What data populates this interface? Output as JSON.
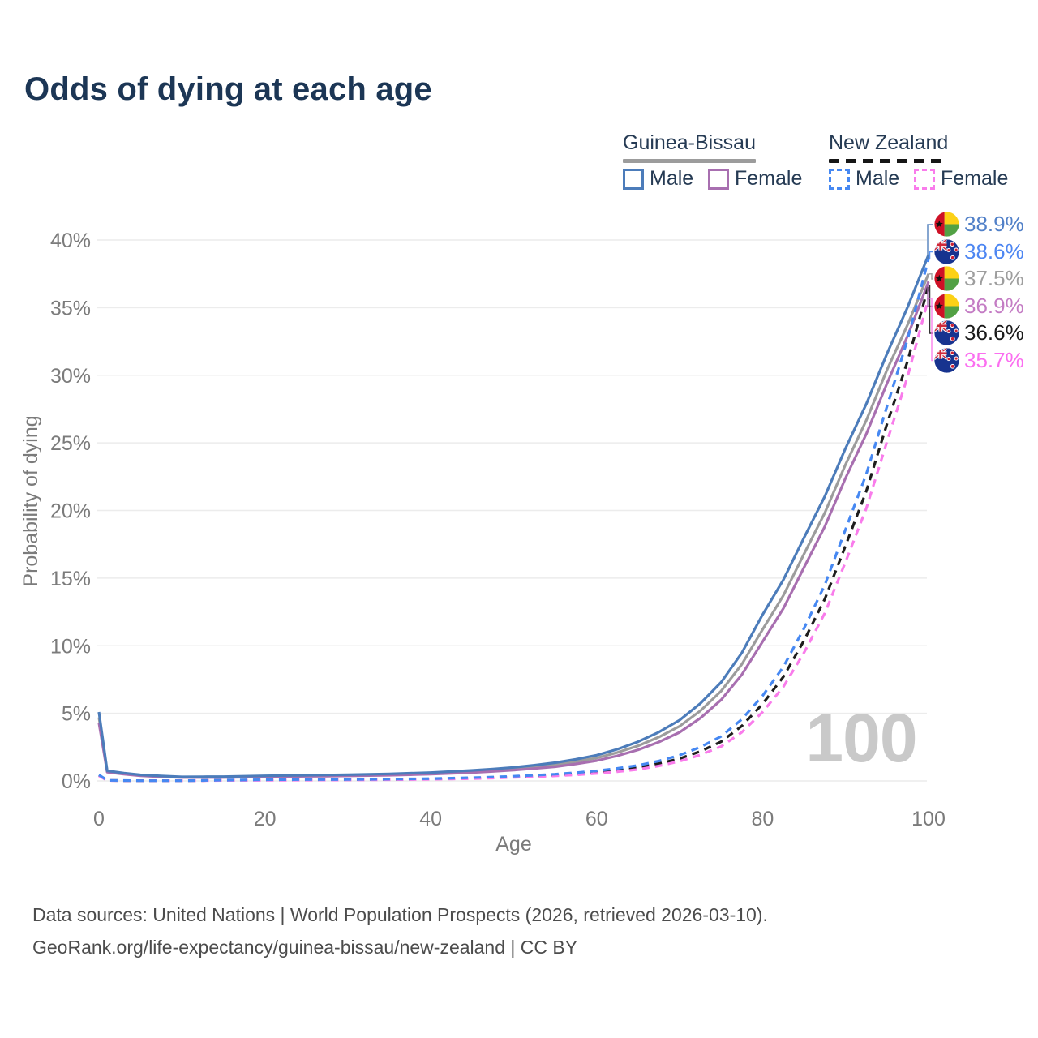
{
  "title": "Odds of dying at each age",
  "watermark": "100",
  "legend": {
    "groups": [
      {
        "label": "Guinea-Bissau",
        "line_style": "solid",
        "underline_color": "#9c9c9c",
        "items": [
          {
            "label": "Male",
            "color": "#4c7cba",
            "dashed": false
          },
          {
            "label": "Female",
            "color": "#a86fb0",
            "dashed": false
          }
        ]
      },
      {
        "label": "New Zealand",
        "line_style": "dashed",
        "underline_color": "#161616",
        "items": [
          {
            "label": "Male",
            "color": "#4688f2",
            "dashed": true
          },
          {
            "label": "Female",
            "color": "#f97ceb",
            "dashed": true
          }
        ]
      }
    ]
  },
  "footer": {
    "line1": "Data sources: United Nations | World Population Prospects (2026, retrieved 2026-03-10).",
    "line2": "GeoRank.org/life-expectancy/guinea-bissau/new-zealand | CC BY"
  },
  "chart_data": {
    "type": "line",
    "title": "Odds of dying at each age",
    "xlabel": "Age",
    "ylabel": "Probability of dying",
    "xlim": [
      0,
      100
    ],
    "ylim": [
      0,
      40
    ],
    "grid": "horizontal",
    "legend_position": "top-right",
    "xticks": [
      0,
      20,
      40,
      60,
      80,
      100
    ],
    "ytick_values": [
      0,
      5,
      10,
      15,
      20,
      25,
      30,
      35,
      40
    ],
    "ytick_labels": [
      "0%",
      "5%",
      "10%",
      "15%",
      "20%",
      "25%",
      "30%",
      "35%",
      "40%"
    ],
    "ages": [
      0,
      1,
      5,
      10,
      15,
      20,
      25,
      30,
      35,
      40,
      45,
      50,
      55,
      60,
      65,
      70,
      75,
      80,
      85,
      90,
      95,
      100
    ],
    "series": [
      {
        "id": "gb-male",
        "name": "Guinea-Bissau Male",
        "country": "Guinea-Bissau",
        "sex": "Male",
        "color": "#4c7cba",
        "dashed": false,
        "flag": "guinea-bissau",
        "end_label": "38.9%",
        "end_label_color": "#5180c8",
        "values": [
          5.1,
          0.75,
          0.45,
          0.3,
          0.32,
          0.38,
          0.42,
          0.46,
          0.52,
          0.62,
          0.78,
          1.0,
          1.35,
          1.9,
          2.9,
          4.5,
          7.3,
          12.3,
          18.0,
          24.6,
          31.6,
          38.9
        ]
      },
      {
        "id": "nz-male",
        "name": "New Zealand Male",
        "country": "New Zealand",
        "sex": "Male",
        "color": "#4688f2",
        "dashed": true,
        "flag": "new-zealand",
        "end_label": "38.6%",
        "end_label_color": "#4d86f2",
        "values": [
          0.45,
          0.04,
          0.02,
          0.02,
          0.06,
          0.09,
          0.1,
          0.11,
          0.13,
          0.17,
          0.24,
          0.35,
          0.5,
          0.75,
          1.15,
          1.9,
          3.3,
          6.3,
          11.3,
          18.6,
          27.7,
          38.6
        ]
      },
      {
        "id": "gb-both",
        "name": "Guinea-Bissau Both sexes",
        "country": "Guinea-Bissau",
        "sex": "Both",
        "color": "#9c9c9c",
        "dashed": false,
        "flag": "guinea-bissau",
        "end_label": "37.5%",
        "end_label_color": "#9e9e9e",
        "values": [
          4.7,
          0.7,
          0.42,
          0.27,
          0.28,
          0.34,
          0.38,
          0.41,
          0.47,
          0.56,
          0.7,
          0.9,
          1.2,
          1.7,
          2.6,
          4.05,
          6.65,
          11.2,
          16.8,
          23.4,
          30.4,
          37.5
        ]
      },
      {
        "id": "gb-female",
        "name": "Guinea-Bissau Female",
        "country": "Guinea-Bissau",
        "sex": "Female",
        "color": "#a86fb0",
        "dashed": false,
        "flag": "guinea-bissau",
        "end_label": "36.9%",
        "end_label_color": "#c47cc4",
        "values": [
          4.3,
          0.65,
          0.38,
          0.25,
          0.25,
          0.3,
          0.34,
          0.37,
          0.42,
          0.5,
          0.62,
          0.8,
          1.05,
          1.5,
          2.3,
          3.6,
          6.0,
          10.3,
          15.8,
          22.4,
          29.4,
          36.9
        ]
      },
      {
        "id": "nz-both",
        "name": "New Zealand Both sexes",
        "country": "New Zealand",
        "sex": "Both",
        "color": "#1d1d1d",
        "dashed": true,
        "flag": "new-zealand",
        "end_label": "36.6%",
        "end_label_color": "#1a1a1a",
        "values": [
          0.42,
          0.035,
          0.018,
          0.018,
          0.05,
          0.07,
          0.08,
          0.09,
          0.11,
          0.14,
          0.2,
          0.3,
          0.43,
          0.65,
          1.0,
          1.65,
          2.9,
          5.7,
          10.4,
          17.4,
          26.4,
          36.6
        ]
      },
      {
        "id": "nz-female",
        "name": "New Zealand Female",
        "country": "New Zealand",
        "sex": "Female",
        "color": "#f97ceb",
        "dashed": true,
        "flag": "new-zealand",
        "end_label": "35.7%",
        "end_label_color": "#fb6ef0",
        "values": [
          0.38,
          0.03,
          0.015,
          0.015,
          0.035,
          0.05,
          0.06,
          0.07,
          0.09,
          0.12,
          0.17,
          0.26,
          0.37,
          0.55,
          0.85,
          1.45,
          2.55,
          5.1,
          9.5,
          16.2,
          25.1,
          35.7
        ]
      }
    ]
  }
}
